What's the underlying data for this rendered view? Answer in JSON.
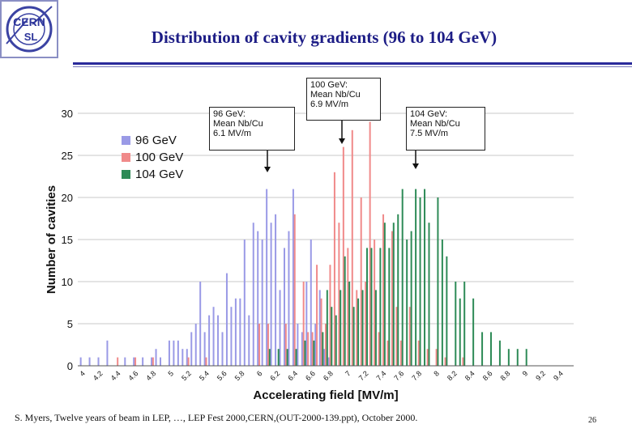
{
  "title": "Distribution of cavity gradients (96 to 104 GeV)",
  "logo": {
    "line1": "CERN",
    "line2": "SL"
  },
  "footer": "S. Myers, Twelve years of beam in LEP, …, LEP Fest 2000,CERN,(OUT-2000-139.ppt), October 2000.",
  "page_number": "26",
  "callouts": {
    "c96": {
      "line1": "96 GeV:",
      "line2": "Mean Nb/Cu",
      "line3": "6.1 MV/m"
    },
    "c100": {
      "line1": "100 GeV:",
      "line2": "Mean Nb/Cu",
      "line3": "6.9 MV/m"
    },
    "c104": {
      "line1": "104 GeV:",
      "line2": "Mean Nb/Cu",
      "line3": "7.5 MV/m"
    }
  },
  "chart_data": {
    "type": "bar",
    "title": "",
    "xlabel": "Accelerating field [MV/m]",
    "ylabel": "Number of cavities",
    "ylim": [
      0,
      30
    ],
    "yticks": [
      0,
      5,
      10,
      15,
      20,
      25,
      30
    ],
    "xlim": [
      3.95,
      9.55
    ],
    "xticks": [
      "4",
      "4.2",
      "4.4",
      "4.6",
      "4.8",
      "5",
      "5.2",
      "5.4",
      "5.6",
      "5.8",
      "6",
      "6.2",
      "6.4",
      "6.6",
      "6.8",
      "7",
      "7.2",
      "7.4",
      "7.6",
      "7.8",
      "8",
      "8.2",
      "8.4",
      "8.6",
      "8.8",
      "9",
      "9.2",
      "9.4"
    ],
    "bin_width": 0.05,
    "legend": "top-left",
    "series": [
      {
        "name": "96 GeV",
        "color": "#9a9ae6",
        "x": [
          4.0,
          4.1,
          4.2,
          4.3,
          4.5,
          4.6,
          4.7,
          4.8,
          4.85,
          4.9,
          5.0,
          5.05,
          5.1,
          5.15,
          5.2,
          5.25,
          5.3,
          5.35,
          5.4,
          5.45,
          5.5,
          5.55,
          5.6,
          5.65,
          5.7,
          5.75,
          5.8,
          5.85,
          5.9,
          5.95,
          6.0,
          6.05,
          6.1,
          6.15,
          6.2,
          6.25,
          6.3,
          6.35,
          6.4,
          6.45,
          6.5,
          6.55,
          6.6,
          6.65,
          6.7,
          6.75,
          6.8
        ],
        "values": [
          1,
          1,
          1,
          3,
          1,
          1,
          1,
          1,
          2,
          1,
          3,
          3,
          3,
          2,
          2,
          4,
          5,
          10,
          4,
          6,
          7,
          6,
          4,
          11,
          7,
          8,
          8,
          15,
          6,
          17,
          16,
          15,
          21,
          17,
          18,
          9,
          14,
          16,
          21,
          5,
          4,
          10,
          15,
          5,
          9,
          2,
          1
        ]
      },
      {
        "name": "100 GeV",
        "color": "#f08a8a",
        "x": [
          4.4,
          4.6,
          4.8,
          5.2,
          5.4,
          6.0,
          6.1,
          6.3,
          6.4,
          6.5,
          6.55,
          6.6,
          6.65,
          6.7,
          6.75,
          6.8,
          6.85,
          6.9,
          6.95,
          7.0,
          7.05,
          7.1,
          7.15,
          7.2,
          7.25,
          7.3,
          7.35,
          7.4,
          7.45,
          7.5,
          7.55,
          7.6,
          7.7,
          7.8,
          7.9,
          8.0,
          8.1,
          8.3
        ],
        "values": [
          1,
          1,
          1,
          1,
          1,
          5,
          5,
          5,
          18,
          10,
          4,
          4,
          12,
          8,
          5,
          12,
          23,
          17,
          26,
          14,
          28,
          9,
          20,
          10,
          29,
          15,
          4,
          18,
          3,
          16,
          7,
          3,
          7,
          3,
          2,
          2,
          1,
          1
        ]
      },
      {
        "name": "104 GeV",
        "color": "#2e8b57",
        "x": [
          6.1,
          6.2,
          6.3,
          6.4,
          6.5,
          6.6,
          6.7,
          6.75,
          6.8,
          6.85,
          6.9,
          6.95,
          7.0,
          7.05,
          7.1,
          7.15,
          7.2,
          7.25,
          7.3,
          7.35,
          7.4,
          7.45,
          7.5,
          7.55,
          7.6,
          7.65,
          7.7,
          7.75,
          7.8,
          7.85,
          7.9,
          8.0,
          8.05,
          8.1,
          8.2,
          8.25,
          8.3,
          8.4,
          8.5,
          8.6,
          8.7,
          8.8,
          8.9,
          9.0
        ],
        "values": [
          2,
          2,
          2,
          2,
          3,
          3,
          4,
          9,
          7,
          6,
          9,
          13,
          10,
          7,
          8,
          9,
          14,
          14,
          9,
          14,
          17,
          14,
          17,
          18,
          21,
          15,
          16,
          21,
          20,
          21,
          17,
          20,
          15,
          13,
          10,
          8,
          10,
          8,
          4,
          4,
          3,
          2,
          2,
          2
        ]
      }
    ]
  }
}
